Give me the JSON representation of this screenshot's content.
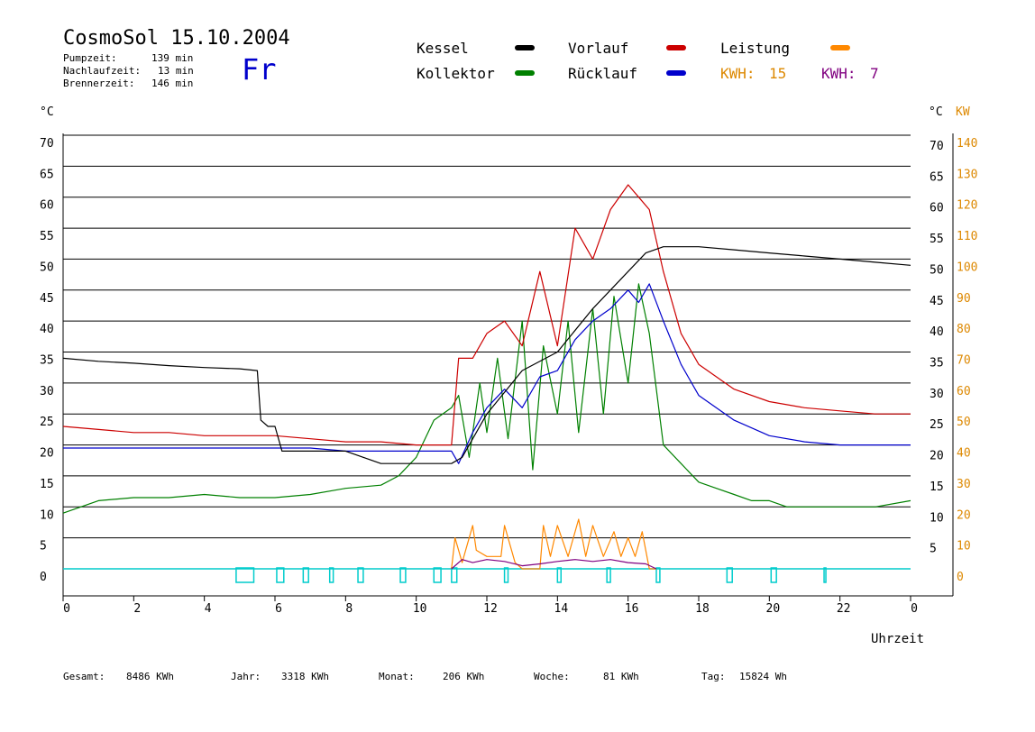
{
  "header": {
    "title": "CosmoSol 15.10.2004",
    "day": "Fr",
    "stats": [
      {
        "label": "Pumpzeit:",
        "value": "139 min"
      },
      {
        "label": "Nachlaufzeit:",
        "value": "13 min"
      },
      {
        "label": "Brennerzeit:",
        "value": "146 min"
      }
    ]
  },
  "legend": {
    "items": [
      {
        "label": "Kessel",
        "color": "#000000"
      },
      {
        "label": "Vorlauf",
        "color": "#cc0000"
      },
      {
        "label": "Leistung",
        "color": "#ff8800"
      },
      {
        "label": "Kollektor",
        "color": "#008000"
      },
      {
        "label": "Rücklauf",
        "color": "#0000cc"
      }
    ],
    "kwh1_label": "KWH:",
    "kwh1_value": "15",
    "kwh1_color": "#dd8800",
    "kwh2_label": "KWH:",
    "kwh2_value": "7",
    "kwh2_color": "#800080"
  },
  "chart_data": {
    "type": "line",
    "xlabel": "Uhrzeit",
    "ylabel_left": "°C",
    "ylabel_right_1": "°C",
    "ylabel_right_2": "KW",
    "x_ticks": [
      "0",
      "2",
      "4",
      "6",
      "8",
      "10",
      "12",
      "14",
      "16",
      "18",
      "20",
      "22",
      "0"
    ],
    "xlim": [
      0,
      24
    ],
    "ylim": [
      0,
      70
    ],
    "y_ticks_left": [
      0,
      5,
      10,
      15,
      20,
      25,
      30,
      35,
      40,
      45,
      50,
      55,
      60,
      65,
      70
    ],
    "y_ticks_right_c": [
      5,
      10,
      15,
      20,
      25,
      30,
      35,
      40,
      45,
      50,
      55,
      60,
      65,
      70
    ],
    "y_ticks_right_kw": [
      0,
      10,
      20,
      30,
      40,
      50,
      60,
      70,
      80,
      90,
      100,
      110,
      120,
      130,
      140
    ],
    "grid": true,
    "series": [
      {
        "name": "Kollektor",
        "color": "#008000",
        "x": [
          0,
          0.5,
          1,
          2,
          3,
          4,
          5,
          6,
          7,
          8,
          9,
          9.5,
          10,
          10.5,
          11,
          11.2,
          11.5,
          11.8,
          12,
          12.3,
          12.6,
          13,
          13.3,
          13.6,
          14,
          14.3,
          14.6,
          15,
          15.3,
          15.6,
          16,
          16.3,
          16.6,
          17,
          17.5,
          18,
          18.5,
          19,
          19.5,
          20,
          20.5,
          21,
          21.5,
          22,
          22.5,
          23,
          24
        ],
        "y": [
          9,
          10,
          11,
          11.5,
          11.5,
          12,
          11.5,
          11.5,
          12,
          13,
          13.5,
          15,
          18,
          24,
          26,
          28,
          18,
          30,
          22,
          34,
          21,
          40,
          16,
          36,
          25,
          40,
          22,
          42,
          25,
          44,
          30,
          46,
          38,
          20,
          17,
          14,
          13,
          12,
          11,
          11,
          10,
          10,
          10,
          10,
          10,
          10,
          11
        ]
      },
      {
        "name": "Vorlauf",
        "color": "#cc0000",
        "x": [
          0,
          1,
          2,
          3,
          4,
          5,
          6,
          7,
          8,
          9,
          10,
          11,
          11.2,
          11.6,
          12,
          12.5,
          13,
          13.5,
          14,
          14.5,
          15,
          15.5,
          16,
          16.3,
          16.6,
          17,
          17.5,
          18,
          19,
          20,
          21,
          22,
          23,
          24
        ],
        "y": [
          23,
          22.5,
          22,
          22,
          21.5,
          21.5,
          21.5,
          21,
          20.5,
          20.5,
          20,
          20,
          34,
          34,
          38,
          40,
          36,
          48,
          36,
          55,
          50,
          58,
          62,
          60,
          58,
          48,
          38,
          33,
          29,
          27,
          26,
          25.5,
          25,
          25
        ]
      },
      {
        "name": "Rücklauf",
        "color": "#0000cc",
        "x": [
          0,
          1,
          2,
          3,
          4,
          5,
          6,
          7,
          8,
          9,
          10,
          11,
          11.2,
          11.6,
          12,
          12.5,
          13,
          13.5,
          14,
          14.5,
          15,
          15.5,
          16,
          16.3,
          16.6,
          17,
          17.5,
          18,
          19,
          20,
          21,
          22,
          23,
          24
        ],
        "y": [
          19.5,
          19.5,
          19.5,
          19.5,
          19.5,
          19.5,
          19.5,
          19.5,
          19,
          19,
          19,
          19,
          17,
          22,
          26,
          29,
          26,
          31,
          32,
          37,
          40,
          42,
          45,
          43,
          46,
          40,
          33,
          28,
          24,
          21.5,
          20.5,
          20,
          20,
          20
        ]
      },
      {
        "name": "Kessel",
        "color": "#000000",
        "x": [
          0,
          1,
          2,
          3,
          4,
          5,
          5.5,
          5.6,
          5.8,
          6,
          6.2,
          7,
          8,
          8.5,
          9,
          9.5,
          10,
          11,
          11.3,
          12,
          13,
          14,
          15,
          16,
          16.5,
          17,
          18,
          19,
          20,
          21,
          22,
          23,
          24
        ],
        "y": [
          34,
          33.5,
          33.2,
          32.8,
          32.5,
          32.3,
          32,
          24,
          23,
          23,
          19,
          19,
          19,
          18,
          17,
          17,
          17,
          17,
          18,
          25,
          32,
          35,
          42,
          48,
          51,
          52,
          52,
          51.5,
          51,
          50.5,
          50,
          49.5,
          49
        ]
      },
      {
        "name": "Leistung",
        "color": "#ff8800",
        "x": [
          11,
          11.1,
          11.3,
          11.6,
          11.7,
          12,
          12.4,
          12.5,
          12.8,
          13,
          13.5,
          13.6,
          13.8,
          14,
          14.3,
          14.6,
          14.8,
          15,
          15.3,
          15.6,
          15.8,
          16,
          16.2,
          16.4,
          16.6,
          16.8
        ],
        "y": [
          0,
          5,
          1,
          7,
          3,
          2,
          2,
          7,
          1,
          0,
          0,
          7,
          2,
          7,
          2,
          8,
          2,
          7,
          2,
          6,
          2,
          5,
          2,
          6,
          0,
          0
        ]
      },
      {
        "name": "KWH",
        "color": "#800080",
        "x": [
          11,
          11.3,
          11.6,
          12,
          12.5,
          13,
          13.5,
          14,
          14.5,
          15,
          15.5,
          16,
          16.5,
          16.8
        ],
        "y": [
          0,
          1.5,
          1,
          1.5,
          1.2,
          0.5,
          0.8,
          1.2,
          1.5,
          1.2,
          1.5,
          1,
          0.8,
          0
        ]
      }
    ],
    "pump_runs": [
      [
        4.9,
        5.4
      ],
      [
        6.05,
        6.25
      ],
      [
        6.8,
        6.95
      ],
      [
        7.55,
        7.65
      ],
      [
        8.35,
        8.5
      ],
      [
        9.55,
        9.7
      ],
      [
        10.5,
        10.7
      ],
      [
        11,
        11.15
      ],
      [
        12.5,
        12.6
      ],
      [
        14,
        14.1
      ],
      [
        15.4,
        15.5
      ],
      [
        16.8,
        16.9
      ],
      [
        18.8,
        18.95
      ],
      [
        20.05,
        20.2
      ],
      [
        21.55,
        21.6
      ]
    ]
  },
  "footer": {
    "items": [
      {
        "label": "Gesamt:",
        "value": "8486 KWh"
      },
      {
        "label": "Jahr:",
        "value": "3318 KWh"
      },
      {
        "label": "Monat:",
        "value": "206 KWh"
      },
      {
        "label": "Woche:",
        "value": "81 KWh"
      },
      {
        "label": "Tag:",
        "value": "15824 Wh"
      }
    ]
  }
}
